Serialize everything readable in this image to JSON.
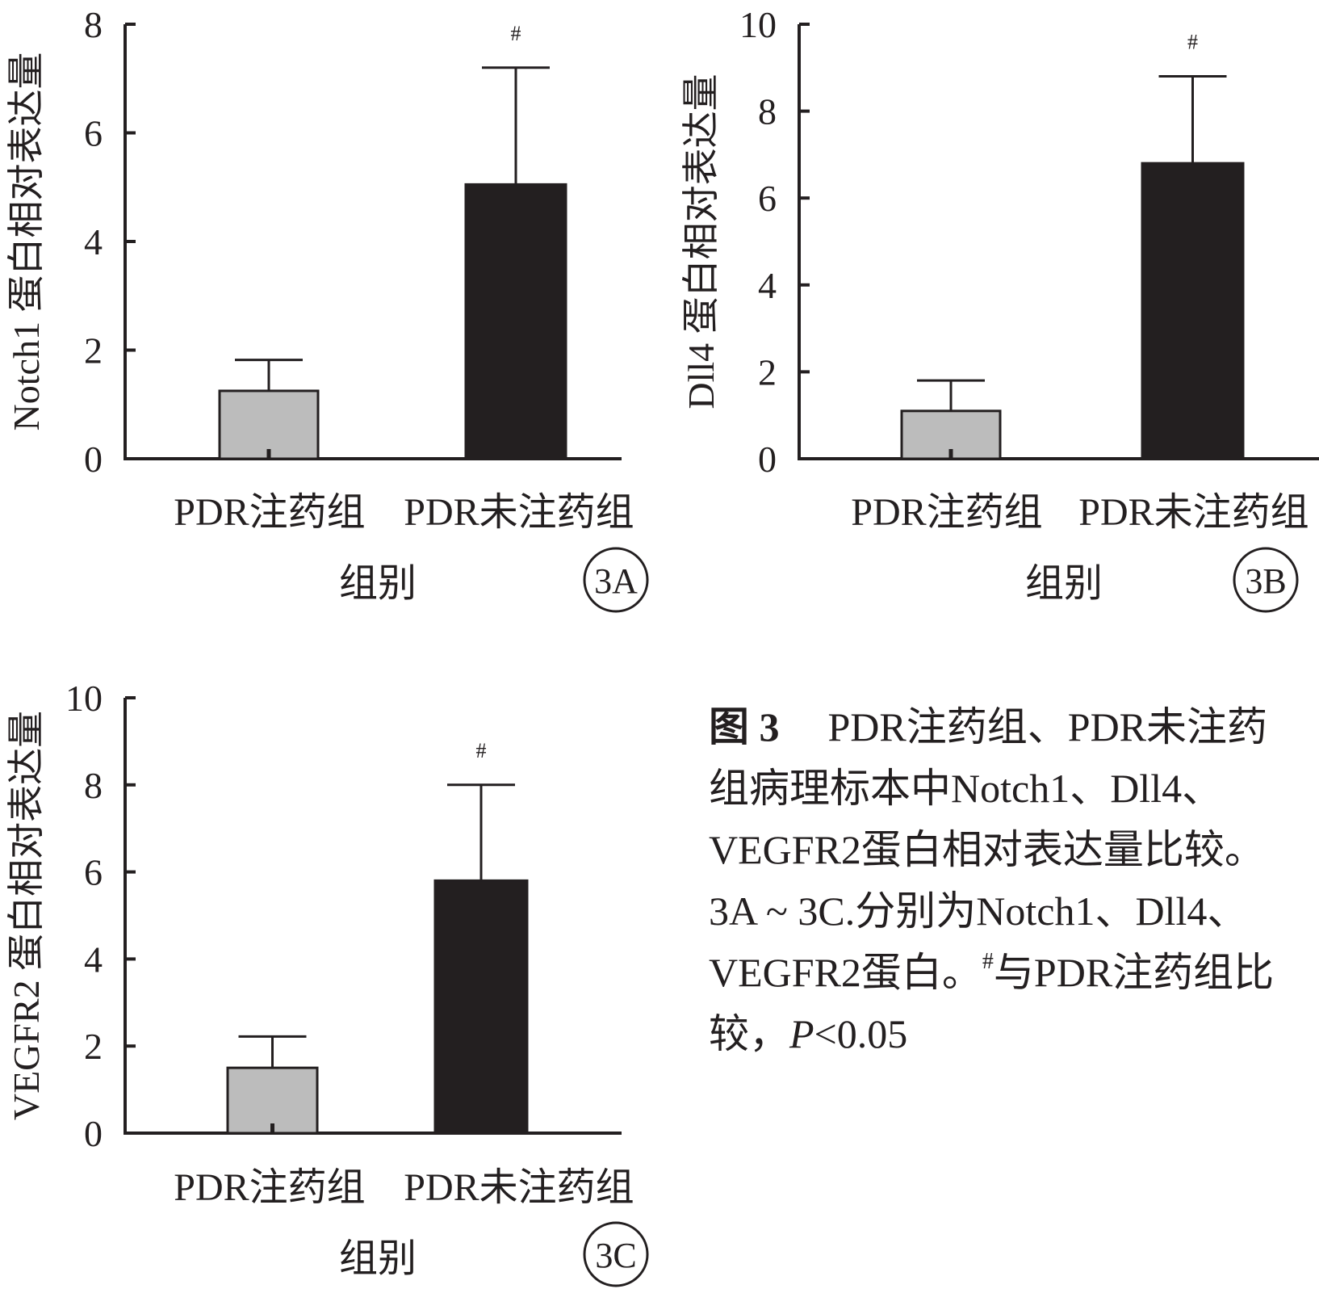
{
  "chart_data": [
    {
      "type": "bar",
      "panel_label": "3A",
      "categories": [
        "PDR注药组",
        "PDR未注药组"
      ],
      "values": [
        1.25,
        5.05
      ],
      "errors": [
        0.57,
        2.15
      ],
      "annotations": [
        "",
        "#"
      ],
      "colors": [
        "#bcbcbc",
        "#231f20"
      ],
      "ylabel": "Notch1 蛋白相对表达量",
      "xlabel": "组别",
      "ylim": [
        0,
        8
      ],
      "yticks": [
        0,
        2,
        4,
        6,
        8
      ],
      "grid": false
    },
    {
      "type": "bar",
      "panel_label": "3B",
      "categories": [
        "PDR注药组",
        "PDR未注药组"
      ],
      "values": [
        1.1,
        6.8
      ],
      "errors": [
        0.7,
        2.0
      ],
      "annotations": [
        "",
        "#"
      ],
      "colors": [
        "#bcbcbc",
        "#231f20"
      ],
      "ylabel": "Dll4 蛋白相对表达量",
      "xlabel": "组别",
      "ylim": [
        0,
        10
      ],
      "yticks": [
        0,
        2,
        4,
        6,
        8,
        10
      ],
      "grid": false
    },
    {
      "type": "bar",
      "panel_label": "3C",
      "categories": [
        "PDR注药组",
        "PDR未注药组"
      ],
      "values": [
        1.5,
        5.8
      ],
      "errors": [
        0.72,
        2.2
      ],
      "annotations": [
        "",
        "#"
      ],
      "colors": [
        "#bcbcbc",
        "#231f20"
      ],
      "ylabel": "VEGFR2 蛋白相对表达量",
      "xlabel": "组别",
      "ylim": [
        0,
        10
      ],
      "yticks": [
        0,
        2,
        4,
        6,
        8,
        10
      ],
      "grid": false
    }
  ],
  "caption": {
    "label": "图 3",
    "text1": "PDR注药组、PDR未注药组病理标本中Notch1、Dll4、VEGFR2蛋白相对表达量比较。3A ~ 3C.分别为Notch1、Dll4、VEGFR2蛋白。",
    "hash": "#",
    "text2": "与PDR注药组比较，",
    "p_symbol": "P",
    "p_value": "<0.05"
  }
}
